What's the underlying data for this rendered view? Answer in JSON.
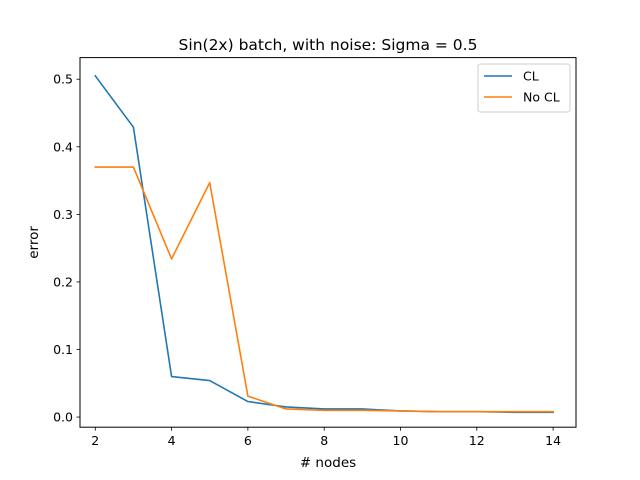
{
  "chart_data": {
    "type": "line",
    "title": "Sin(2x) batch, with noise: Sigma = 0.5",
    "xlabel": "# nodes",
    "ylabel": "error",
    "xlim": [
      1.6,
      14.6
    ],
    "ylim": [
      -0.015,
      0.532
    ],
    "xticks": [
      2,
      4,
      6,
      8,
      10,
      12,
      14
    ],
    "yticks": [
      0.0,
      0.1,
      0.2,
      0.3,
      0.4,
      0.5
    ],
    "ytick_labels": [
      "0.0",
      "0.1",
      "0.2",
      "0.3",
      "0.4",
      "0.5"
    ],
    "grid": false,
    "legend_position": "top-right",
    "x": [
      2,
      3,
      4,
      5,
      6,
      7,
      8,
      9,
      10,
      11,
      12,
      13,
      14
    ],
    "series": [
      {
        "name": "CL",
        "color": "#1f77b4",
        "values": [
          0.505,
          0.429,
          0.06,
          0.054,
          0.023,
          0.015,
          0.012,
          0.012,
          0.009,
          0.008,
          0.008,
          0.007,
          0.007
        ]
      },
      {
        "name": "No CL",
        "color": "#ff7f0e",
        "values": [
          0.37,
          0.37,
          0.234,
          0.347,
          0.031,
          0.012,
          0.01,
          0.01,
          0.009,
          0.008,
          0.008,
          0.008,
          0.008
        ]
      }
    ]
  }
}
